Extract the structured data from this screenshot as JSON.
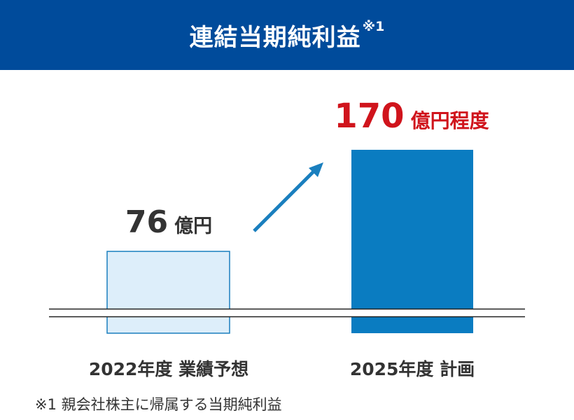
{
  "header": {
    "title": "連結当期純利益",
    "note_mark": "※1"
  },
  "chart_data": {
    "type": "bar",
    "categories": [
      "2022年度 業績予想",
      "2025年度 計画"
    ],
    "values": [
      76,
      170
    ],
    "value_labels": [
      {
        "number": "76",
        "unit": "億円"
      },
      {
        "number": "170",
        "unit": "億円程度"
      }
    ],
    "unit": "億円",
    "axis_break": true,
    "trend_arrow": true,
    "grid": false,
    "colors": {
      "bar_2022_fill": "#ddeefa",
      "bar_2022_stroke": "#1a7fbe",
      "bar_2025_fill": "#0a7cc1",
      "label_2022": "#333333",
      "label_2025": "#d0141c",
      "arrow": "#1a7fbe",
      "header_bg": "#004b9b"
    }
  },
  "footnote": "※1 親会社株主に帰属する当期純利益"
}
